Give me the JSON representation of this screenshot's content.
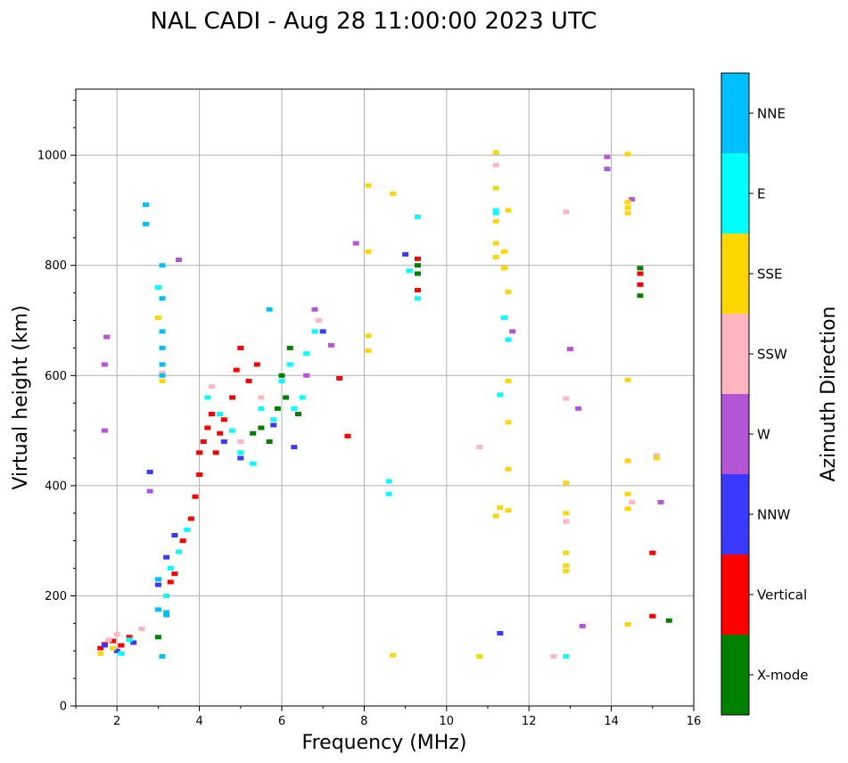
{
  "chart_data": {
    "type": "scatter",
    "title": "NAL CADI - Aug 28 11:00:00 2023 UTC",
    "xlabel": "Frequency (MHz)",
    "ylabel": "Virtual height (km)",
    "xlim": [
      1,
      16
    ],
    "ylim": [
      0,
      1120
    ],
    "x_ticks": [
      "2",
      "4",
      "6",
      "8",
      "10",
      "12",
      "14",
      "16"
    ],
    "y_ticks": [
      "0",
      "200",
      "400",
      "600",
      "800",
      "1000"
    ],
    "grid": true,
    "colorbar": {
      "label": "Azimuth Direction",
      "position": "right",
      "categories": [
        {
          "name": "X-mode",
          "color": "#008000"
        },
        {
          "name": "Vertical",
          "color": "#ff0000"
        },
        {
          "name": "NNW",
          "color": "#3a3aff"
        },
        {
          "name": "W",
          "color": "#b455d6"
        },
        {
          "name": "SSW",
          "color": "#ffb6c1"
        },
        {
          "name": "SSE",
          "color": "#ffd700"
        },
        {
          "name": "E",
          "color": "#00ffff"
        },
        {
          "name": "NNE",
          "color": "#00bfff"
        }
      ]
    },
    "series": [
      {
        "name": "Vertical",
        "points": [
          [
            1.6,
            105
          ],
          [
            1.7,
            112
          ],
          [
            1.9,
            118
          ],
          [
            2.1,
            110
          ],
          [
            2.3,
            125
          ],
          [
            3.3,
            225
          ],
          [
            3.4,
            240
          ],
          [
            3.6,
            300
          ],
          [
            3.8,
            340
          ],
          [
            3.9,
            380
          ],
          [
            4.0,
            420
          ],
          [
            4.0,
            460
          ],
          [
            4.1,
            480
          ],
          [
            4.2,
            505
          ],
          [
            4.3,
            530
          ],
          [
            4.4,
            460
          ],
          [
            4.5,
            495
          ],
          [
            4.6,
            520
          ],
          [
            4.8,
            560
          ],
          [
            4.9,
            610
          ],
          [
            5.0,
            650
          ],
          [
            5.2,
            590
          ],
          [
            5.4,
            620
          ],
          [
            7.4,
            595
          ],
          [
            7.6,
            490
          ],
          [
            9.3,
            812
          ],
          [
            9.3,
            755
          ],
          [
            14.7,
            765
          ],
          [
            14.7,
            785
          ],
          [
            15.0,
            278
          ],
          [
            15.0,
            163
          ]
        ]
      },
      {
        "name": "X-mode",
        "points": [
          [
            5.3,
            495
          ],
          [
            5.5,
            505
          ],
          [
            5.7,
            480
          ],
          [
            5.9,
            540
          ],
          [
            6.0,
            600
          ],
          [
            6.1,
            560
          ],
          [
            6.2,
            650
          ],
          [
            6.4,
            530
          ],
          [
            9.3,
            800
          ],
          [
            9.3,
            785
          ],
          [
            14.7,
            745
          ],
          [
            14.7,
            795
          ],
          [
            15.4,
            155
          ],
          [
            3.0,
            125
          ]
        ]
      },
      {
        "name": "NNW",
        "points": [
          [
            1.7,
            110
          ],
          [
            2.0,
            100
          ],
          [
            2.4,
            115
          ],
          [
            2.8,
            425
          ],
          [
            3.0,
            220
          ],
          [
            3.2,
            270
          ],
          [
            3.4,
            310
          ],
          [
            4.6,
            480
          ],
          [
            5.0,
            450
          ],
          [
            5.8,
            510
          ],
          [
            6.3,
            470
          ],
          [
            7.0,
            680
          ],
          [
            11.3,
            132
          ],
          [
            9.0,
            820
          ]
        ]
      },
      {
        "name": "W",
        "points": [
          [
            1.7,
            500
          ],
          [
            1.7,
            620
          ],
          [
            1.75,
            670
          ],
          [
            2.8,
            390
          ],
          [
            3.5,
            810
          ],
          [
            6.6,
            600
          ],
          [
            6.8,
            720
          ],
          [
            7.2,
            655
          ],
          [
            7.8,
            840
          ],
          [
            11.6,
            680
          ],
          [
            13.2,
            540
          ],
          [
            13.0,
            648
          ],
          [
            13.9,
            975
          ],
          [
            13.9,
            997
          ],
          [
            14.5,
            920
          ],
          [
            15.2,
            370
          ],
          [
            13.3,
            145
          ]
        ]
      },
      {
        "name": "SSW",
        "points": [
          [
            1.8,
            120
          ],
          [
            2.0,
            130
          ],
          [
            2.6,
            140
          ],
          [
            3.1,
            605
          ],
          [
            4.3,
            580
          ],
          [
            5.0,
            480
          ],
          [
            5.5,
            560
          ],
          [
            6.9,
            700
          ],
          [
            10.8,
            470
          ],
          [
            11.2,
            982
          ],
          [
            12.9,
            897
          ],
          [
            12.9,
            558
          ],
          [
            12.6,
            90
          ],
          [
            14.5,
            370
          ],
          [
            15.1,
            455
          ],
          [
            12.9,
            335
          ]
        ]
      },
      {
        "name": "SSE",
        "points": [
          [
            1.6,
            95
          ],
          [
            1.9,
            105
          ],
          [
            3.0,
            705
          ],
          [
            3.1,
            590
          ],
          [
            8.1,
            945
          ],
          [
            8.1,
            825
          ],
          [
            8.1,
            672
          ],
          [
            8.1,
            645
          ],
          [
            8.7,
            930
          ],
          [
            8.7,
            92
          ],
          [
            10.8,
            90
          ],
          [
            11.2,
            1005
          ],
          [
            11.2,
            940
          ],
          [
            11.2,
            880
          ],
          [
            11.2,
            840
          ],
          [
            11.2,
            815
          ],
          [
            11.4,
            825
          ],
          [
            11.4,
            795
          ],
          [
            11.5,
            900
          ],
          [
            11.5,
            752
          ],
          [
            11.5,
            590
          ],
          [
            11.5,
            515
          ],
          [
            11.5,
            430
          ],
          [
            11.3,
            360
          ],
          [
            11.5,
            355
          ],
          [
            11.2,
            345
          ],
          [
            12.9,
            405
          ],
          [
            12.9,
            350
          ],
          [
            12.9,
            278
          ],
          [
            12.9,
            255
          ],
          [
            12.9,
            245
          ],
          [
            14.4,
            1002
          ],
          [
            14.4,
            915
          ],
          [
            14.4,
            905
          ],
          [
            14.4,
            895
          ],
          [
            14.4,
            592
          ],
          [
            14.4,
            445
          ],
          [
            14.4,
            385
          ],
          [
            14.4,
            358
          ],
          [
            14.4,
            148
          ],
          [
            15.1,
            450
          ]
        ]
      },
      {
        "name": "E",
        "points": [
          [
            2.1,
            95
          ],
          [
            2.3,
            120
          ],
          [
            3.0,
            760
          ],
          [
            3.2,
            200
          ],
          [
            3.3,
            250
          ],
          [
            3.5,
            280
          ],
          [
            3.7,
            320
          ],
          [
            4.2,
            560
          ],
          [
            4.5,
            530
          ],
          [
            4.8,
            500
          ],
          [
            5.0,
            460
          ],
          [
            5.3,
            440
          ],
          [
            5.5,
            540
          ],
          [
            5.8,
            520
          ],
          [
            6.0,
            590
          ],
          [
            6.2,
            620
          ],
          [
            6.3,
            540
          ],
          [
            6.5,
            560
          ],
          [
            6.6,
            640
          ],
          [
            6.8,
            680
          ],
          [
            8.6,
            408
          ],
          [
            8.6,
            385
          ],
          [
            9.1,
            790
          ],
          [
            9.3,
            888
          ],
          [
            9.3,
            740
          ],
          [
            11.2,
            900
          ],
          [
            11.2,
            895
          ],
          [
            11.3,
            565
          ],
          [
            11.4,
            705
          ],
          [
            11.5,
            665
          ],
          [
            12.9,
            90
          ]
        ]
      },
      {
        "name": "NNE",
        "points": [
          [
            3.1,
            800
          ],
          [
            3.1,
            740
          ],
          [
            3.1,
            680
          ],
          [
            3.1,
            650
          ],
          [
            3.1,
            620
          ],
          [
            3.1,
            600
          ],
          [
            3.2,
            165
          ],
          [
            3.2,
            170
          ],
          [
            3.0,
            230
          ],
          [
            2.7,
            910
          ],
          [
            2.7,
            875
          ],
          [
            5.7,
            720
          ],
          [
            3.1,
            90
          ],
          [
            3.0,
            175
          ]
        ]
      }
    ]
  }
}
